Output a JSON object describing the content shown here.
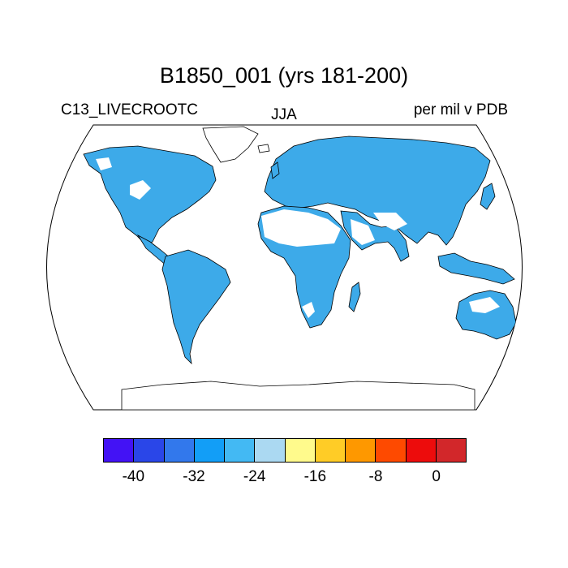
{
  "header": {
    "title": "B1850_001 (yrs 181-200)",
    "variable": "C13_LIVECROOTC",
    "season": "JJA",
    "units": "per mil v PDB"
  },
  "map": {
    "projection": "robinson",
    "field_color": "#3daae9",
    "missing_color": "#ffffff",
    "land_outline_color": "#000000"
  },
  "colorbar": {
    "colors": [
      "#4312f5",
      "#2a46e8",
      "#3278ec",
      "#129ef7",
      "#43b9f3",
      "#abd9f2",
      "#fffa8c",
      "#ffcc26",
      "#fe9800",
      "#fe4a00",
      "#ed0c0c",
      "#d2272a"
    ],
    "tick_labels": [
      "-40",
      "-32",
      "-24",
      "-16",
      "-8",
      "0"
    ]
  }
}
